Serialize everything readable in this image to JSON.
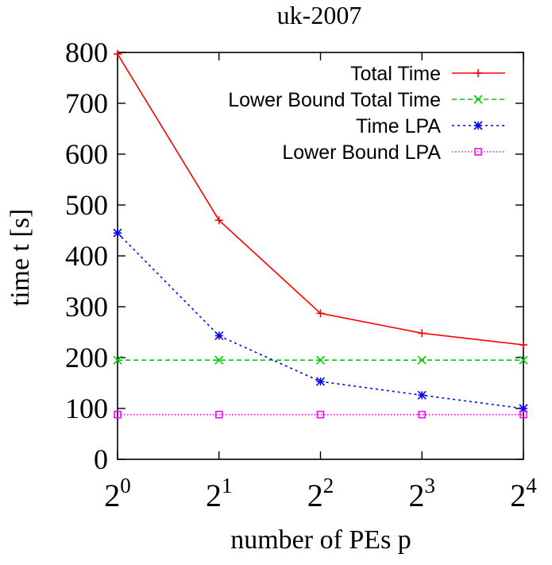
{
  "chart_data": {
    "type": "line",
    "title": "uk-2007",
    "xlabel": "number of PEs p",
    "ylabel": "time t [s]",
    "x": [
      0,
      1,
      2,
      3,
      4
    ],
    "x_tick_base": "2",
    "x_tick_exponents": [
      "0",
      "1",
      "2",
      "3",
      "4"
    ],
    "xlim": [
      0,
      4
    ],
    "ylim": [
      0,
      800
    ],
    "y_ticks": [
      0,
      100,
      200,
      300,
      400,
      500,
      600,
      700,
      800
    ],
    "y_tick_labels": [
      "0",
      "100",
      "200",
      "300",
      "400",
      "500",
      "600",
      "700",
      "800"
    ],
    "grid": false,
    "legend_position": "top-right",
    "series": [
      {
        "name": "Total Time",
        "values": [
          797,
          470,
          287,
          248,
          225
        ],
        "color": "#ff0000",
        "marker": "plus",
        "dash": "solid"
      },
      {
        "name": "Lower Bound Total Time",
        "values": [
          195,
          195,
          195,
          195,
          195
        ],
        "color": "#00cc00",
        "marker": "cross",
        "dash": "dashed"
      },
      {
        "name": "Time LPA",
        "values": [
          445,
          243,
          153,
          126,
          100
        ],
        "color": "#0000ff",
        "marker": "star",
        "dash": "dotted"
      },
      {
        "name": "Lower Bound LPA",
        "values": [
          88,
          88,
          88,
          88,
          88
        ],
        "color": "#ff00ff",
        "marker": "square",
        "dash": "fine-dotted"
      }
    ]
  }
}
